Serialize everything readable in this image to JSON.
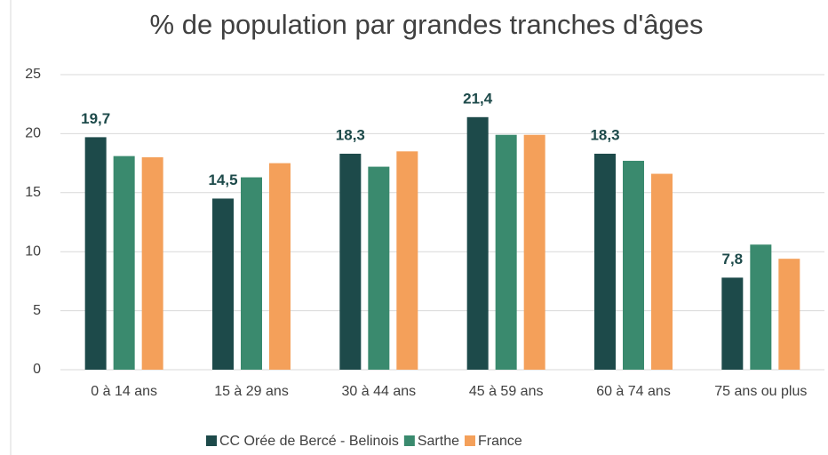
{
  "chart_data": {
    "type": "bar",
    "title": "% de population par grandes tranches d'âges",
    "categories": [
      "0 à 14 ans",
      "15 à 29 ans",
      "30 à 44 ans",
      "45 à 59 ans",
      "60 à 74 ans",
      "75 ans ou plus"
    ],
    "series": [
      {
        "name": "CC Orée de Bercé - Belinois",
        "color": "#1d4a4a",
        "values": [
          19.7,
          14.5,
          18.3,
          21.4,
          18.3,
          7.8
        ],
        "value_labels": [
          "19,7",
          "14,5",
          "18,3",
          "21,4",
          "18,3",
          "7,8"
        ]
      },
      {
        "name": "Sarthe",
        "color": "#3a8a6e",
        "values": [
          18.1,
          16.3,
          17.2,
          19.9,
          17.7,
          10.6
        ]
      },
      {
        "name": "France",
        "color": "#f4a05a",
        "values": [
          18.0,
          17.5,
          18.5,
          19.9,
          16.6,
          9.4
        ]
      }
    ],
    "ylim": [
      0,
      25
    ],
    "yticks": [
      0,
      5,
      10,
      15,
      20,
      25
    ],
    "grid": true,
    "legend": "bottom"
  }
}
